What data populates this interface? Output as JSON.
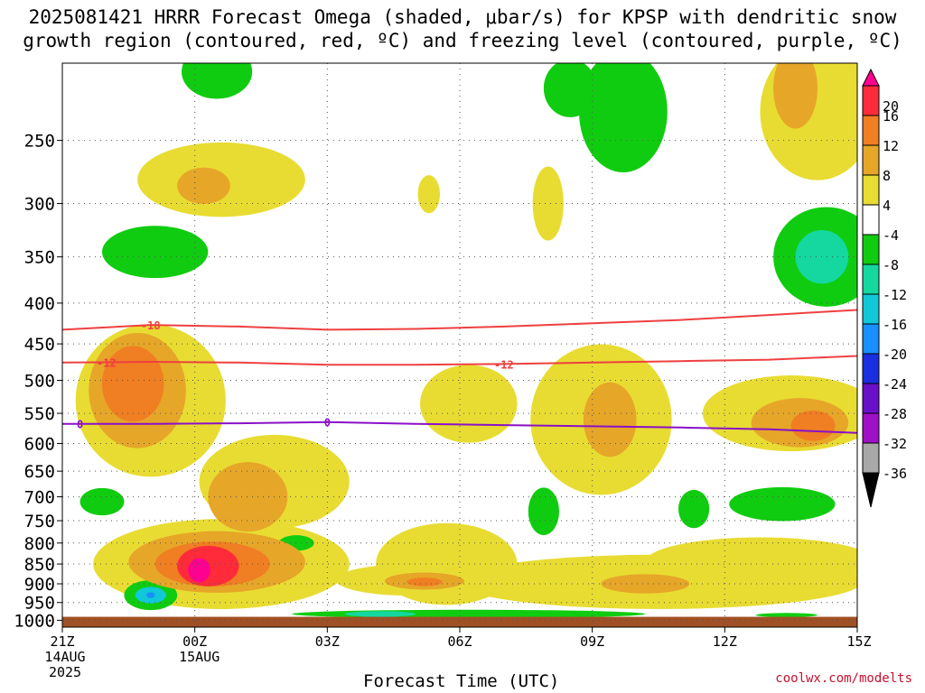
{
  "title": {
    "line1": "2025081421 HRRR Forecast Omega (shaded, μbar/s) for KPSP with dendritic snow",
    "line2": "growth region (contoured, red, ºC) and freezing level (contoured, purple, ºC)"
  },
  "chart_data": {
    "type": "heatmap",
    "xlabel": "Forecast Time (UTC)",
    "credit": "coolwx.com/modelts",
    "x_ticks": [
      {
        "hour": 0,
        "lines": [
          "21Z",
          "14AUG",
          "2025"
        ]
      },
      {
        "hour": 3,
        "lines": [
          "00Z",
          "15AUG"
        ]
      },
      {
        "hour": 6,
        "lines": [
          "03Z"
        ]
      },
      {
        "hour": 9,
        "lines": [
          "06Z"
        ]
      },
      {
        "hour": 12,
        "lines": [
          "09Z"
        ]
      },
      {
        "hour": 15,
        "lines": [
          "12Z"
        ]
      },
      {
        "hour": 18,
        "lines": [
          "15Z"
        ]
      }
    ],
    "xlim": [
      0,
      18
    ],
    "y_ticks": [
      250,
      300,
      350,
      400,
      450,
      500,
      550,
      600,
      650,
      700,
      750,
      800,
      850,
      900,
      950,
      1000
    ],
    "ylim_hpa": [
      200,
      1020
    ],
    "surface_pressure_hpa": 990,
    "colorbar": {
      "labels": [
        "20",
        "16",
        "12",
        "8",
        "4",
        "-4",
        "-8",
        "-12",
        "-16",
        "-20",
        "-24",
        "-28",
        "-32",
        "-36"
      ],
      "bins": [
        {
          "from": 20,
          "to": 24,
          "color": "#ff0090"
        },
        {
          "from": 16,
          "to": 20,
          "color": "#ff2b3a"
        },
        {
          "from": 12,
          "to": 16,
          "color": "#f07e22"
        },
        {
          "from": 8,
          "to": 12,
          "color": "#e6a628"
        },
        {
          "from": 4,
          "to": 8,
          "color": "#e8dc32"
        },
        {
          "from": -4,
          "to": 4,
          "color": "#ffffff"
        },
        {
          "from": -8,
          "to": -4,
          "color": "#10cc10"
        },
        {
          "from": -12,
          "to": -8,
          "color": "#14d8a0"
        },
        {
          "from": -16,
          "to": -12,
          "color": "#10c8d8"
        },
        {
          "from": -20,
          "to": -16,
          "color": "#1890ff"
        },
        {
          "from": -24,
          "to": -20,
          "color": "#1a2fe0"
        },
        {
          "from": -28,
          "to": -24,
          "color": "#6a10c8"
        },
        {
          "from": -32,
          "to": -28,
          "color": "#a010c8"
        },
        {
          "from": -36,
          "to": -32,
          "color": "#a8a8a8"
        },
        {
          "from": -40,
          "to": -36,
          "color": "#000000"
        }
      ]
    },
    "contours": [
      {
        "label": "-18",
        "color": "#ee4040",
        "kind": "dgz",
        "points": [
          [
            0,
            432
          ],
          [
            2,
            426
          ],
          [
            4,
            428
          ],
          [
            6,
            432
          ],
          [
            8,
            431
          ],
          [
            10,
            428
          ],
          [
            12,
            424
          ],
          [
            14,
            420
          ],
          [
            16,
            414
          ],
          [
            18,
            408
          ]
        ]
      },
      {
        "label": "-12",
        "color": "#ee4040",
        "kind": "dgz",
        "points": [
          [
            0,
            475
          ],
          [
            2,
            474
          ],
          [
            4,
            475
          ],
          [
            6,
            478
          ],
          [
            8,
            478
          ],
          [
            10,
            477
          ],
          [
            12,
            475
          ],
          [
            14,
            473
          ],
          [
            16,
            471
          ],
          [
            18,
            466
          ]
        ]
      },
      {
        "label": "0",
        "color": "#8a10c8",
        "kind": "freezing",
        "points": [
          [
            0,
            567
          ],
          [
            2,
            567
          ],
          [
            4,
            566
          ],
          [
            6,
            564
          ],
          [
            8,
            567
          ],
          [
            10,
            569
          ],
          [
            12,
            571
          ],
          [
            14,
            573
          ],
          [
            16,
            576
          ],
          [
            18,
            582
          ]
        ]
      }
    ],
    "omega_regions": [
      {
        "value": 6,
        "center": [
          3.6,
          280
        ],
        "radius": [
          1.9,
          30
        ]
      },
      {
        "value": 10,
        "center": [
          3.2,
          285
        ],
        "radius": [
          0.6,
          15
        ]
      },
      {
        "value": -6,
        "center": [
          2.1,
          345
        ],
        "radius": [
          1.2,
          26
        ]
      },
      {
        "value": -6,
        "center": [
          3.5,
          205
        ],
        "radius": [
          0.8,
          16
        ]
      },
      {
        "value": 6,
        "center": [
          8.3,
          292
        ],
        "radius": [
          0.25,
          16
        ]
      },
      {
        "value": 6,
        "center": [
          11.0,
          300
        ],
        "radius": [
          0.35,
          32
        ]
      },
      {
        "value": -6,
        "center": [
          12.7,
          230
        ],
        "radius": [
          1.0,
          40
        ]
      },
      {
        "value": -6,
        "center": [
          11.5,
          215
        ],
        "radius": [
          0.6,
          18
        ]
      },
      {
        "value": 6,
        "center": [
          17.1,
          230
        ],
        "radius": [
          1.3,
          45
        ]
      },
      {
        "value": 10,
        "center": [
          16.6,
          215
        ],
        "radius": [
          0.5,
          25
        ]
      },
      {
        "value": -6,
        "center": [
          17.3,
          350
        ],
        "radius": [
          1.2,
          50
        ]
      },
      {
        "value": -10,
        "center": [
          17.2,
          350
        ],
        "radius": [
          0.6,
          27
        ]
      },
      {
        "value": 6,
        "center": [
          2.0,
          530
        ],
        "radius": [
          1.7,
          115
        ]
      },
      {
        "value": 10,
        "center": [
          1.7,
          515
        ],
        "radius": [
          1.1,
          85
        ]
      },
      {
        "value": 14,
        "center": [
          1.6,
          505
        ],
        "radius": [
          0.7,
          55
        ]
      },
      {
        "value": 6,
        "center": [
          9.2,
          535
        ],
        "radius": [
          1.1,
          60
        ]
      },
      {
        "value": 6,
        "center": [
          12.2,
          560
        ],
        "radius": [
          1.6,
          120
        ]
      },
      {
        "value": 10,
        "center": [
          12.4,
          560
        ],
        "radius": [
          0.6,
          60
        ]
      },
      {
        "value": 6,
        "center": [
          16.5,
          550
        ],
        "radius": [
          2.0,
          60
        ]
      },
      {
        "value": 10,
        "center": [
          16.7,
          565
        ],
        "radius": [
          1.1,
          40
        ]
      },
      {
        "value": 14,
        "center": [
          17.0,
          570
        ],
        "radius": [
          0.5,
          25
        ]
      },
      {
        "value": 6,
        "center": [
          4.8,
          670
        ],
        "radius": [
          1.7,
          90
        ]
      },
      {
        "value": 10,
        "center": [
          4.2,
          700
        ],
        "radius": [
          0.9,
          70
        ]
      },
      {
        "value": 6,
        "center": [
          3.6,
          850
        ],
        "radius": [
          2.9,
          110
        ]
      },
      {
        "value": 10,
        "center": [
          3.5,
          845
        ],
        "radius": [
          2.0,
          75
        ]
      },
      {
        "value": 14,
        "center": [
          3.4,
          850
        ],
        "radius": [
          1.3,
          55
        ]
      },
      {
        "value": 18,
        "center": [
          3.3,
          855
        ],
        "radius": [
          0.7,
          50
        ]
      },
      {
        "value": 22,
        "center": [
          3.1,
          865
        ],
        "radius": [
          0.25,
          30
        ]
      },
      {
        "value": 6,
        "center": [
          8.7,
          850
        ],
        "radius": [
          1.6,
          100
        ]
      },
      {
        "value": 6,
        "center": [
          7.8,
          890
        ],
        "radius": [
          1.6,
          40
        ]
      },
      {
        "value": 10,
        "center": [
          8.2,
          893
        ],
        "radius": [
          0.9,
          22
        ]
      },
      {
        "value": 14,
        "center": [
          8.2,
          895
        ],
        "radius": [
          0.4,
          11
        ]
      },
      {
        "value": 6,
        "center": [
          13.5,
          895
        ],
        "radius": [
          4.6,
          70
        ]
      },
      {
        "value": 10,
        "center": [
          13.2,
          900
        ],
        "radius": [
          1.0,
          25
        ]
      },
      {
        "value": 6,
        "center": [
          15.8,
          845
        ],
        "radius": [
          2.6,
          60
        ]
      },
      {
        "value": -6,
        "center": [
          2.0,
          930
        ],
        "radius": [
          0.6,
          40
        ]
      },
      {
        "value": -14,
        "center": [
          2.0,
          930
        ],
        "radius": [
          0.35,
          22
        ]
      },
      {
        "value": -20,
        "center": [
          2.0,
          930
        ],
        "radius": [
          0.1,
          8
        ]
      },
      {
        "value": -6,
        "center": [
          0.9,
          710
        ],
        "radius": [
          0.5,
          28
        ]
      },
      {
        "value": -6,
        "center": [
          5.3,
          800
        ],
        "radius": [
          0.4,
          18
        ]
      },
      {
        "value": -6,
        "center": [
          10.9,
          730
        ],
        "radius": [
          0.35,
          50
        ]
      },
      {
        "value": -6,
        "center": [
          14.3,
          725
        ],
        "radius": [
          0.35,
          40
        ]
      },
      {
        "value": -6,
        "center": [
          16.3,
          715
        ],
        "radius": [
          1.2,
          35
        ]
      },
      {
        "value": -6,
        "center": [
          9.2,
          982
        ],
        "radius": [
          4.0,
          12
        ]
      },
      {
        "value": -10,
        "center": [
          7.2,
          982
        ],
        "radius": [
          0.8,
          8
        ]
      },
      {
        "value": -6,
        "center": [
          16.4,
          985
        ],
        "radius": [
          0.7,
          6
        ]
      }
    ]
  }
}
